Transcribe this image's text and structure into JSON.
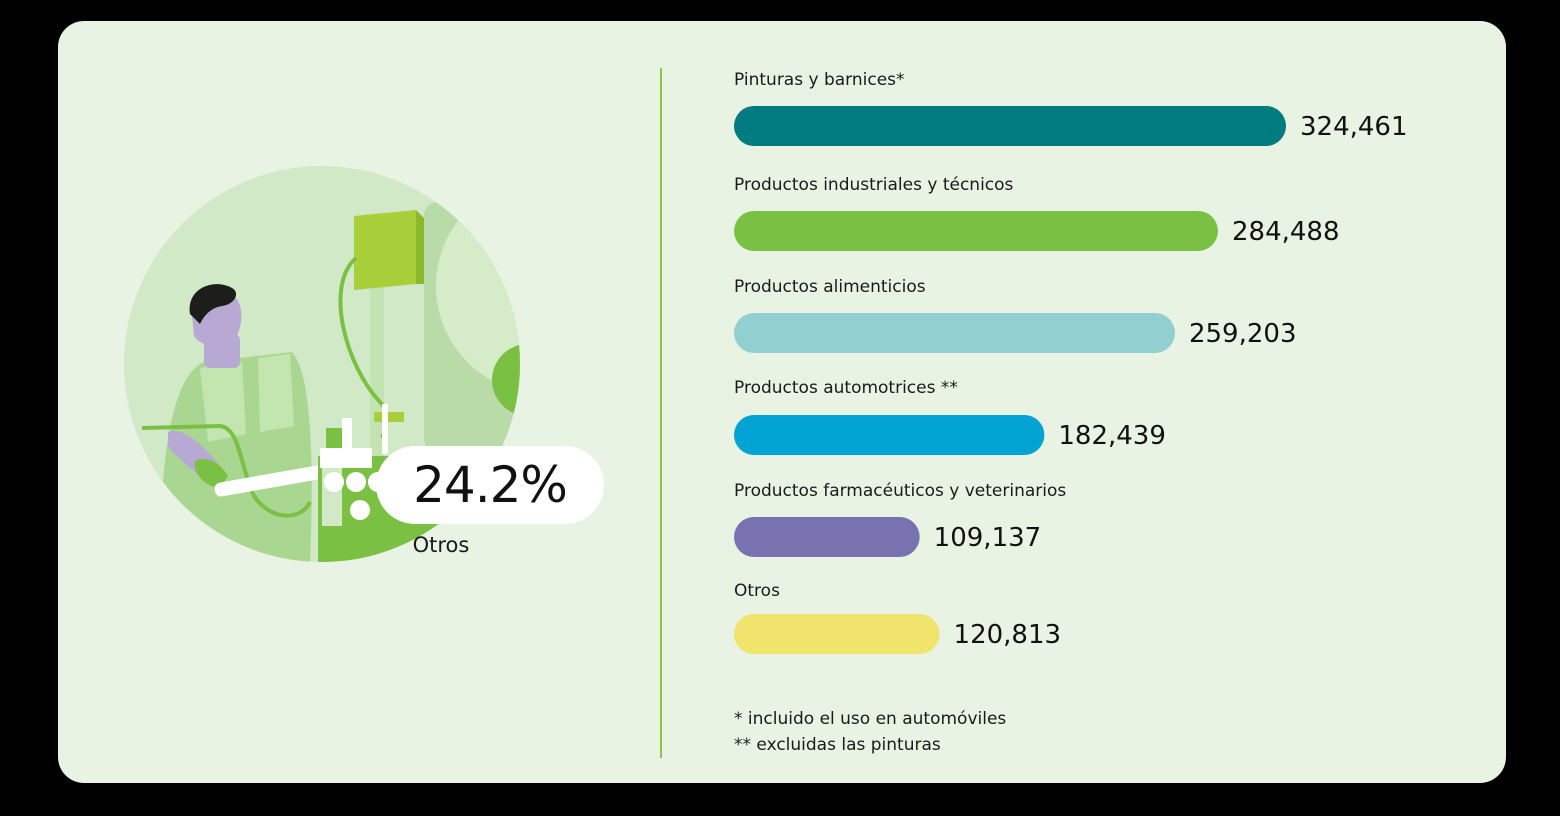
{
  "highlight": {
    "value": "24.2%",
    "label": "Otros"
  },
  "chart_data": {
    "type": "bar",
    "orientation": "horizontal",
    "categories": [
      "Pinturas y barnices*",
      "Productos industriales y técnicos",
      "Productos alimenticios",
      "Productos automotrices **",
      "Productos farmacéuticos y veterinarios",
      "Otros"
    ],
    "values": [
      324461,
      284488,
      259203,
      182439,
      109137,
      120813
    ],
    "value_labels": [
      "324,461",
      "284,488",
      "259,203",
      "182,439",
      "109,137",
      "120,813"
    ],
    "colors": [
      "#007b7f",
      "#7ac143",
      "#92cfd1",
      "#00a3d1",
      "#7873b0",
      "#f0e46c"
    ],
    "xlim": [
      0,
      324461
    ],
    "grid": false
  },
  "footnotes": [
    "* incluido el uso en automóviles",
    "** excluidas las pinturas"
  ]
}
